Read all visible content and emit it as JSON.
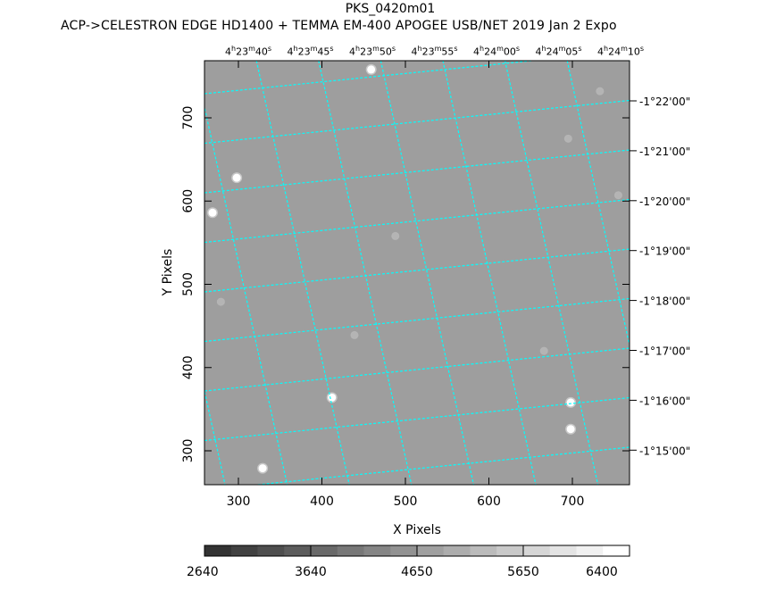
{
  "chart_data": {
    "type": "image",
    "title": "PKS_0420m01",
    "subtitle": "ACP->CELESTRON EDGE HD1400 + TEMMA EM-400 APOGEE USB/NET   2019 Jan  2     Expo",
    "xlabel": "X Pixels",
    "ylabel": "Y Pixels",
    "xlim": [
      260,
      768
    ],
    "ylim": [
      259,
      768
    ],
    "x_ticks": [
      "300",
      "400",
      "500",
      "600",
      "700"
    ],
    "y_ticks": [
      "300",
      "400",
      "500",
      "600",
      "700"
    ],
    "ra_labels": [
      {
        "h": "4",
        "m": "23",
        "s": "40"
      },
      {
        "h": "4",
        "m": "23",
        "s": "45"
      },
      {
        "h": "4",
        "m": "23",
        "s": "50"
      },
      {
        "h": "4",
        "m": "23",
        "s": "55"
      },
      {
        "h": "4",
        "m": "24",
        "s": "00"
      },
      {
        "h": "4",
        "m": "24",
        "s": "05"
      },
      {
        "h": "4",
        "m": "24",
        "s": "10"
      }
    ],
    "dec_labels": [
      "-1°22'00\"",
      "-1°21'00\"",
      "-1°20'00\"",
      "-1°19'00\"",
      "-1°18'00\"",
      "-1°17'00\"",
      "-1°16'00\"",
      "-1°15'00\""
    ],
    "grid_color": "#00ffff",
    "background": "#9e9e9e",
    "colorbar": {
      "labels": [
        "2640",
        "3640",
        "4650",
        "5650",
        "6400"
      ],
      "steps": 16,
      "from": "#333333",
      "to": "#ffffff"
    },
    "stars": [
      {
        "x": 269,
        "y": 586,
        "b": 1
      },
      {
        "x": 298,
        "y": 628,
        "b": 0.8
      },
      {
        "x": 459,
        "y": 758,
        "b": 0.8
      },
      {
        "x": 412,
        "y": 364,
        "b": 1
      },
      {
        "x": 698,
        "y": 358,
        "b": 1
      },
      {
        "x": 698,
        "y": 326,
        "b": 1
      },
      {
        "x": 329,
        "y": 279,
        "b": 1
      },
      {
        "x": 488,
        "y": 558,
        "b": 0.3
      },
      {
        "x": 733,
        "y": 732,
        "b": 0.3
      },
      {
        "x": 695,
        "y": 675,
        "b": 0.25
      },
      {
        "x": 755,
        "y": 607,
        "b": 0.3
      },
      {
        "x": 279,
        "y": 479,
        "b": 0.25
      },
      {
        "x": 439,
        "y": 439,
        "b": 0.25
      },
      {
        "x": 666,
        "y": 420,
        "b": 0.25
      }
    ]
  }
}
